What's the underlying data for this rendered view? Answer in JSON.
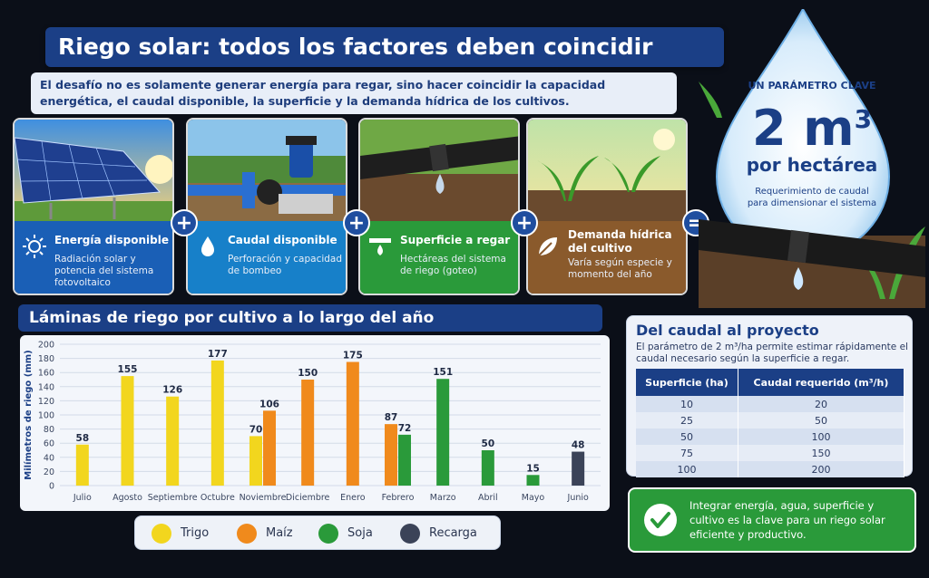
{
  "title": "Riego solar: todos los factores deben coincidir",
  "intro": "El desafío no es solamente generar energía para regar, sino hacer coincidir la capacidad energética, el caudal disponible, la superficie y la demanda hídrica de los cultivos.",
  "panels": [
    {
      "title": "Energía disponible",
      "desc": "Radiación solar y potencia del sistema fotovoltaico",
      "icon": "sun-icon",
      "color": "#1a5fb6"
    },
    {
      "title": "Caudal disponible",
      "desc": "Perforación y capacidad de bombeo",
      "icon": "water-drop-icon",
      "color": "#1780c9"
    },
    {
      "title": "Superficie a regar",
      "desc": "Hectáreas del sistema de riego (goteo)",
      "icon": "drip-icon",
      "color": "#2a9a3a"
    },
    {
      "title": "Demanda hídrica del cultivo",
      "desc": "Varía según especie y momento del año",
      "icon": "leaf-icon",
      "color": "#8a5a2c"
    }
  ],
  "operators": {
    "plus": "+",
    "equals": "="
  },
  "key_param": {
    "label": "UN PARÁMETRO CLAVE",
    "value": "2 m",
    "sup": "3",
    "unit": "por hectárea",
    "desc1": "Requerimiento de caudal",
    "desc2": "para dimensionar el sistema"
  },
  "chart_title": "Láminas de riego por cultivo a lo largo del año",
  "chart_data": {
    "type": "bar",
    "ylabel": "Milímetros de riego (mm)",
    "ylim": [
      0,
      200
    ],
    "yticks": [
      0,
      20,
      40,
      60,
      80,
      100,
      120,
      140,
      160,
      180,
      200
    ],
    "categories": [
      "Julio",
      "Agosto",
      "Septiembre",
      "Octubre",
      "Noviembre",
      "Diciembre",
      "Enero",
      "Febrero",
      "Marzo",
      "Abril",
      "Mayo",
      "Junio"
    ],
    "series": [
      {
        "name": "Trigo",
        "color": "#f2d61e",
        "values": [
          58,
          155,
          126,
          177,
          70,
          null,
          null,
          null,
          null,
          null,
          null,
          null
        ]
      },
      {
        "name": "Maíz",
        "color": "#f08a1c",
        "values": [
          null,
          null,
          null,
          null,
          106,
          150,
          175,
          87,
          null,
          null,
          null,
          null
        ]
      },
      {
        "name": "Soja",
        "color": "#2a9a3a",
        "values": [
          null,
          null,
          null,
          null,
          null,
          null,
          null,
          72,
          151,
          50,
          15,
          null
        ]
      },
      {
        "name": "Recarga",
        "color": "#3b4358",
        "values": [
          null,
          null,
          null,
          null,
          null,
          null,
          null,
          null,
          null,
          null,
          null,
          48
        ]
      }
    ]
  },
  "table_panel": {
    "title": "Del caudal al proyecto",
    "desc": "El parámetro de 2 m³/ha permite estimar rápidamente el caudal necesario según la superficie a regar.",
    "headers": [
      "Superficie (ha)",
      "Caudal requerido (m³/h)"
    ],
    "rows": [
      [
        "10",
        "20"
      ],
      [
        "25",
        "50"
      ],
      [
        "50",
        "100"
      ],
      [
        "75",
        "150"
      ],
      [
        "100",
        "200"
      ]
    ]
  },
  "conclusion": "Integrar energía, agua, superficie y cultivo es la clave para un riego solar eficiente y productivo."
}
